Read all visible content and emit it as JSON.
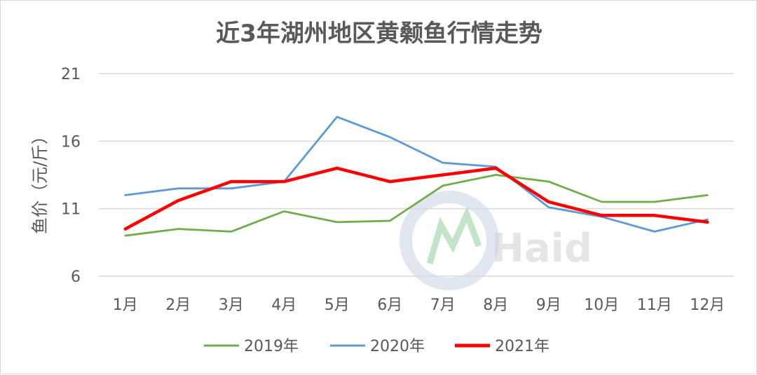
{
  "chart_data": {
    "type": "line",
    "title": "近3年湖州地区黄颡鱼行情走势",
    "ylabel": "鱼价（元/斤）",
    "xlabel": "",
    "ylim": [
      6,
      21
    ],
    "yticks": [
      6,
      11,
      16,
      21
    ],
    "categories": [
      "1月",
      "2月",
      "3月",
      "4月",
      "5月",
      "6月",
      "7月",
      "8月",
      "9月",
      "10月",
      "11月",
      "12月"
    ],
    "series": [
      {
        "name": "2019年",
        "color": "#70ad47",
        "values": [
          9.0,
          9.5,
          9.3,
          10.8,
          10.0,
          10.1,
          12.7,
          13.5,
          13.0,
          11.5,
          11.5,
          12.0
        ]
      },
      {
        "name": "2020年",
        "color": "#5b9bd5",
        "values": [
          12.0,
          12.5,
          12.5,
          13.0,
          17.8,
          16.3,
          14.4,
          14.1,
          11.1,
          10.4,
          9.3,
          10.2
        ]
      },
      {
        "name": "2021年",
        "color": "#ff0000",
        "values": [
          9.5,
          11.6,
          13.0,
          13.0,
          14.0,
          13.0,
          13.5,
          14.0,
          11.5,
          10.5,
          10.5,
          10.0
        ]
      }
    ],
    "grid": true,
    "legend": "bottom"
  },
  "watermark": {
    "brand_text": "Haid"
  }
}
